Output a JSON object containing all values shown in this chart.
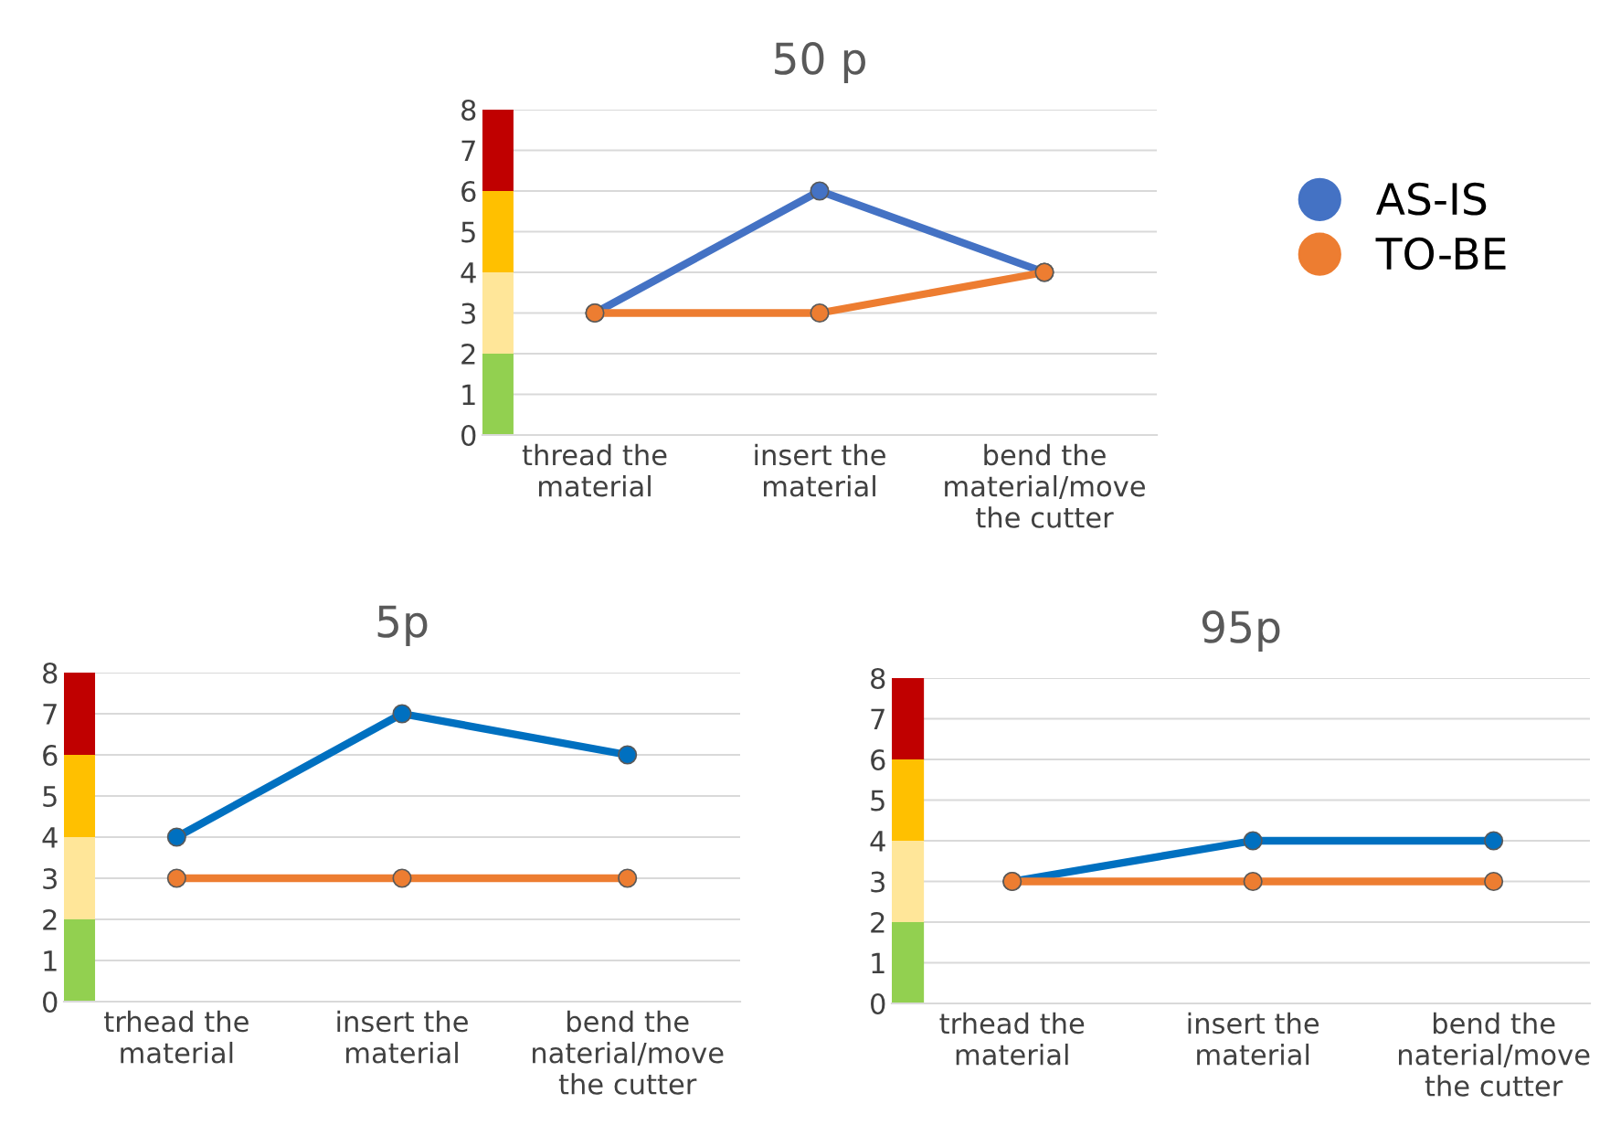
{
  "chart_data": [
    {
      "type": "line",
      "title": "50 p",
      "categories": [
        "thread the\nmaterial",
        "insert the\nmaterial",
        "bend the\nmaterial/move\nthe cutter"
      ],
      "series": [
        {
          "name": "AS-IS",
          "color": "#4472c4",
          "values": [
            3,
            6,
            4
          ]
        },
        {
          "name": "TO-BE",
          "color": "#ed7d31",
          "values": [
            3,
            3,
            4
          ]
        }
      ],
      "ylim": [
        0,
        8
      ],
      "yticks": [
        0,
        1,
        2,
        3,
        4,
        5,
        6,
        7,
        8
      ],
      "grid": "y",
      "legend": "right",
      "marker": "circle",
      "line_style": "solid",
      "bands": [
        {
          "axis": "y",
          "from": 0,
          "to": 2,
          "color": "#92d050"
        },
        {
          "axis": "y",
          "from": 2,
          "to": 4,
          "color": "#ffe699"
        },
        {
          "axis": "y",
          "from": 4,
          "to": 6,
          "color": "#ffc000"
        },
        {
          "axis": "y",
          "from": 6,
          "to": 8,
          "color": "#c00000"
        }
      ]
    },
    {
      "type": "line",
      "title": "5p",
      "categories": [
        "trhead the\nmaterial",
        "insert the\nmaterial",
        "bend the\nnaterial/move\nthe cutter"
      ],
      "series": [
        {
          "color": "#0070c0",
          "values": [
            4,
            7,
            6
          ]
        },
        {
          "color": "#ed7d31",
          "values": [
            3,
            3,
            3
          ]
        }
      ],
      "ylim": [
        0,
        8
      ],
      "yticks": [
        0,
        1,
        2,
        3,
        4,
        5,
        6,
        7,
        8
      ],
      "grid": "y",
      "marker": "circle",
      "line_style": "solid",
      "bands": [
        {
          "axis": "y",
          "from": 0,
          "to": 2,
          "color": "#92d050"
        },
        {
          "axis": "y",
          "from": 2,
          "to": 4,
          "color": "#ffe699"
        },
        {
          "axis": "y",
          "from": 4,
          "to": 6,
          "color": "#ffc000"
        },
        {
          "axis": "y",
          "from": 6,
          "to": 8,
          "color": "#c00000"
        }
      ]
    },
    {
      "type": "line",
      "title": "95p",
      "categories": [
        "trhead the\nmaterial",
        "insert the\nmaterial",
        "bend the\nnaterial/move\nthe cutter"
      ],
      "series": [
        {
          "color": "#0070c0",
          "values": [
            3,
            4,
            4
          ]
        },
        {
          "color": "#ed7d31",
          "values": [
            3,
            3,
            3
          ]
        }
      ],
      "ylim": [
        0,
        8
      ],
      "yticks": [
        0,
        1,
        2,
        3,
        4,
        5,
        6,
        7,
        8
      ],
      "grid": "y",
      "marker": "circle",
      "line_style": "solid",
      "bands": [
        {
          "axis": "y",
          "from": 0,
          "to": 2,
          "color": "#92d050"
        },
        {
          "axis": "y",
          "from": 2,
          "to": 4,
          "color": "#ffe699"
        },
        {
          "axis": "y",
          "from": 4,
          "to": 6,
          "color": "#ffc000"
        },
        {
          "axis": "y",
          "from": 6,
          "to": 8,
          "color": "#c00000"
        }
      ]
    }
  ]
}
